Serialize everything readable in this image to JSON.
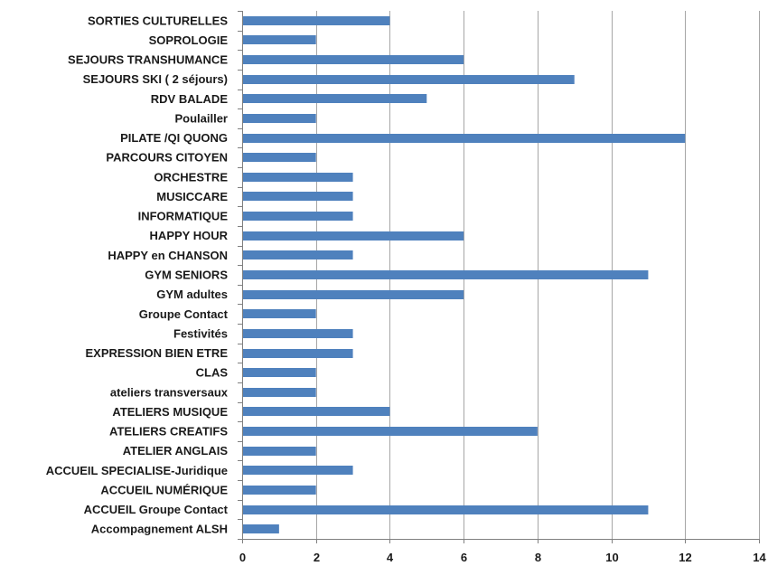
{
  "chart_data": {
    "type": "bar",
    "orientation": "horizontal",
    "title": "",
    "xlabel": "",
    "ylabel": "",
    "xlim": [
      0,
      14
    ],
    "x_ticks": [
      0,
      2,
      4,
      6,
      8,
      10,
      12,
      14
    ],
    "grid": "vertical",
    "legend": "none",
    "bar_color": "#4f81bd",
    "categories": [
      "SORTIES CULTURELLES",
      "SOPROLOGIE",
      "SEJOURS TRANSHUMANCE",
      "SEJOURS SKI ( 2 séjours)",
      "RDV  BALADE",
      "Poulailler",
      "PILATE /QI QUONG",
      "PARCOURS CITOYEN",
      "ORCHESTRE",
      "MUSICCARE",
      "INFORMATIQUE",
      "HAPPY HOUR",
      "HAPPY en CHANSON",
      "GYM SENIORS",
      "GYM adultes",
      "Groupe Contact",
      "Festivités",
      "EXPRESSION BIEN ETRE",
      "CLAS",
      "ateliers transversaux",
      "ATELIERS MUSIQUE",
      "ATELIERS CREATIFS",
      "ATELIER ANGLAIS",
      "ACCUEIL SPECIALISE-Juridique",
      "ACCUEIL NUMÉRIQUE",
      "ACCUEIL Groupe Contact",
      "Accompagnement ALSH"
    ],
    "values": [
      4,
      2,
      6,
      9,
      5,
      2,
      12,
      2,
      3,
      3,
      3,
      6,
      3,
      11,
      6,
      2,
      3,
      3,
      2,
      2,
      4,
      8,
      2,
      3,
      2,
      11,
      1
    ]
  }
}
